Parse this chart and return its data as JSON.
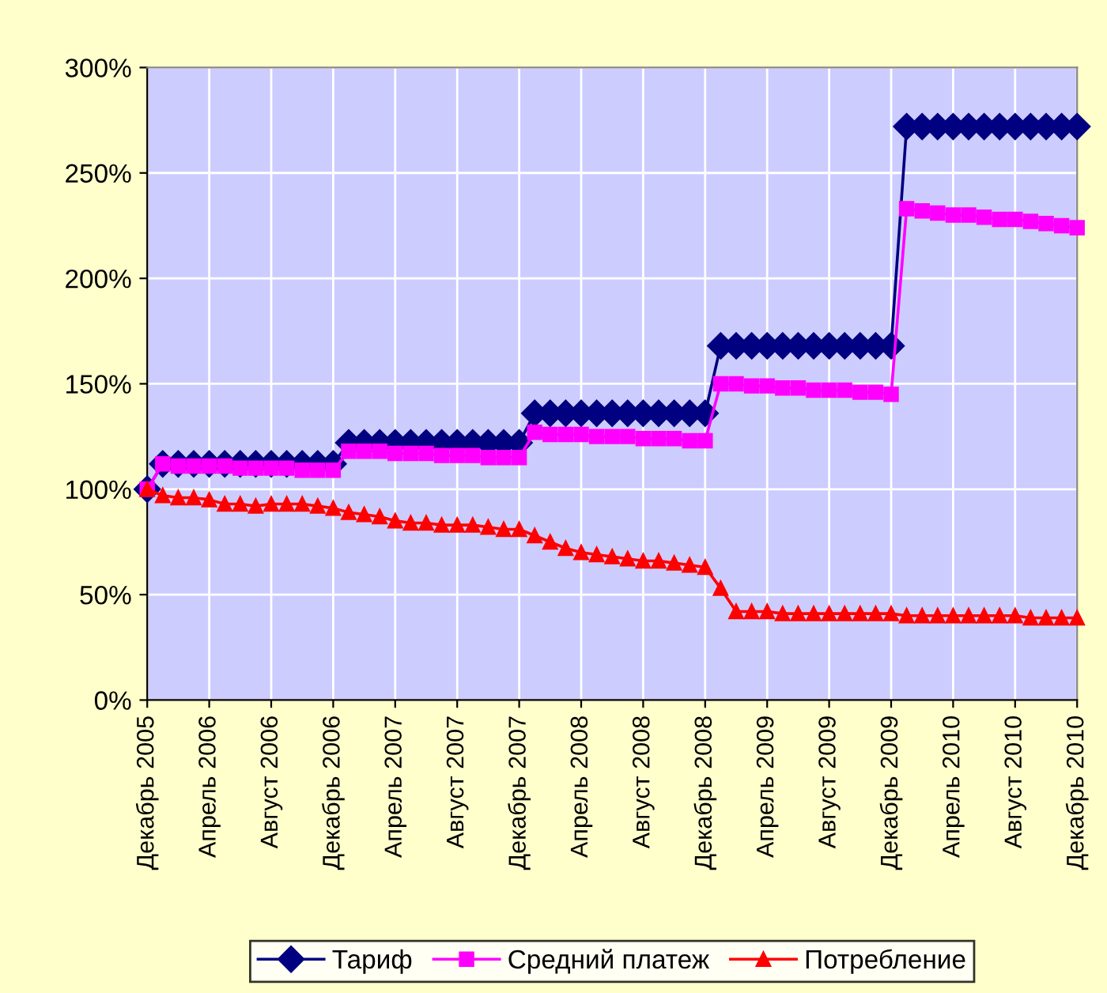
{
  "chart_data": {
    "type": "line",
    "categories": [
      "Декабрь 2005",
      null,
      null,
      null,
      "Апрель 2006",
      null,
      null,
      null,
      "Август 2006",
      null,
      null,
      null,
      "Декабрь 2006",
      null,
      null,
      null,
      "Апрель 2007",
      null,
      null,
      null,
      "Август 2007",
      null,
      null,
      null,
      "Декабрь 2007",
      null,
      null,
      null,
      "Апрель 2008",
      null,
      null,
      null,
      "Август 2008",
      null,
      null,
      null,
      "Декабрь 2008",
      null,
      null,
      null,
      "Апрель 2009",
      null,
      null,
      null,
      "Август 2009",
      null,
      null,
      null,
      "Декабрь 2009",
      null,
      null,
      null,
      "Апрель 2010",
      null,
      null,
      null,
      "Август 2010",
      null,
      null,
      null,
      "Декабрь 2010"
    ],
    "series": [
      {
        "name": "Тариф",
        "color": "#000080",
        "marker": "diamond",
        "values": [
          100,
          112,
          112,
          112,
          112,
          112,
          112,
          112,
          112,
          112,
          112,
          112,
          112,
          122,
          122,
          122,
          122,
          122,
          122,
          122,
          122,
          122,
          122,
          122,
          122,
          136,
          136,
          136,
          136,
          136,
          136,
          136,
          136,
          136,
          136,
          136,
          136,
          168,
          168,
          168,
          168,
          168,
          168,
          168,
          168,
          168,
          168,
          168,
          168,
          272,
          272,
          272,
          272,
          272,
          272,
          272,
          272,
          272,
          272,
          272,
          272
        ]
      },
      {
        "name": "Средний платеж",
        "color": "#ff00ff",
        "marker": "square",
        "values": [
          100,
          112,
          111,
          111,
          111,
          111,
          110,
          110,
          110,
          110,
          109,
          109,
          109,
          118,
          118,
          118,
          117,
          117,
          117,
          116,
          116,
          116,
          115,
          115,
          115,
          127,
          126,
          126,
          126,
          125,
          125,
          125,
          124,
          124,
          124,
          123,
          123,
          150,
          150,
          149,
          149,
          148,
          148,
          147,
          147,
          147,
          146,
          146,
          145,
          233,
          232,
          231,
          230,
          230,
          229,
          228,
          228,
          227,
          226,
          225,
          224
        ]
      },
      {
        "name": "Потребление",
        "color": "#ff0000",
        "marker": "triangle",
        "values": [
          100,
          97,
          96,
          96,
          95,
          93,
          93,
          92,
          93,
          93,
          93,
          92,
          91,
          89,
          88,
          87,
          85,
          84,
          84,
          83,
          83,
          83,
          82,
          81,
          81,
          78,
          75,
          72,
          70,
          69,
          68,
          67,
          66,
          66,
          65,
          64,
          63,
          53,
          42,
          42,
          42,
          41,
          41,
          41,
          41,
          41,
          41,
          41,
          41,
          40,
          40,
          40,
          40,
          40,
          40,
          40,
          40,
          39,
          39,
          39,
          39
        ]
      }
    ],
    "ylim": [
      0,
      300
    ],
    "yticks": [
      {
        "value": 0,
        "label": "0%"
      },
      {
        "value": 50,
        "label": "50%"
      },
      {
        "value": 100,
        "label": "100%"
      },
      {
        "value": 150,
        "label": "150%"
      },
      {
        "value": 200,
        "label": "200%"
      },
      {
        "value": 250,
        "label": "250%"
      },
      {
        "value": 300,
        "label": "300%"
      }
    ],
    "grid": true,
    "legend": "bottom",
    "line_style": "solid"
  }
}
